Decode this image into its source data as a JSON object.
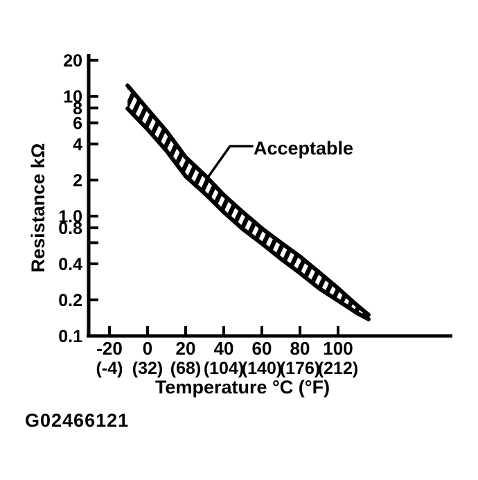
{
  "figure": {
    "id_label": "G02466121"
  },
  "colors": {
    "ink": "#000000",
    "background": "#ffffff"
  },
  "chart_data": {
    "type": "area",
    "subtype": "acceptable-band",
    "title": "",
    "description": "Sensor resistance versus temperature with hatched acceptable range band",
    "grid": false,
    "legend": "none",
    "x_axis": {
      "label": "Temperature °C (°F)",
      "range_c": [
        -31,
        160
      ],
      "ticks": [
        {
          "value": -20,
          "c": "-20",
          "f": "(-4)"
        },
        {
          "value": 0,
          "c": "0",
          "f": "(32)"
        },
        {
          "value": 20,
          "c": "20",
          "f": "(68)"
        },
        {
          "value": 40,
          "c": "40",
          "f": "(104)"
        },
        {
          "value": 60,
          "c": "60",
          "f": "(140)"
        },
        {
          "value": 80,
          "c": "80",
          "f": "(176)"
        },
        {
          "value": 100,
          "c": "100",
          "f": "(212)"
        }
      ]
    },
    "y_axis": {
      "label": "Resistance kΩ",
      "unit": "kΩ",
      "scale": "log",
      "range": [
        0.1,
        22
      ],
      "ticks": [
        {
          "label": "20",
          "value": 20
        },
        {
          "label": "10",
          "value": 10
        },
        {
          "label": "8",
          "value": 8
        },
        {
          "label": "6",
          "value": 6
        },
        {
          "label": "4",
          "value": 4
        },
        {
          "label": "2",
          "value": 2
        },
        {
          "label": "1.0",
          "value": 1.0
        },
        {
          "label": "0.8",
          "value": 0.8
        },
        {
          "label": "",
          "value": 0.6
        },
        {
          "label": "0.4",
          "value": 0.4
        },
        {
          "label": "0.2",
          "value": 0.2
        },
        {
          "label": "0.1",
          "value": 0.1
        }
      ]
    },
    "series": [
      {
        "name": "Acceptable",
        "type": "band",
        "style": {
          "hatched": true,
          "color": "#000000"
        },
        "points": [
          {
            "temp_c": -10.5,
            "upper_kohm": 12.3,
            "lower_kohm": 7.9
          },
          {
            "temp_c": 0,
            "upper_kohm": 7.8,
            "lower_kohm": 5.3
          },
          {
            "temp_c": 10,
            "upper_kohm": 5.1,
            "lower_kohm": 3.5
          },
          {
            "temp_c": 20,
            "upper_kohm": 3.1,
            "lower_kohm": 2.15
          },
          {
            "temp_c": 30,
            "upper_kohm": 2.2,
            "lower_kohm": 1.55
          },
          {
            "temp_c": 40,
            "upper_kohm": 1.5,
            "lower_kohm": 1.08
          },
          {
            "temp_c": 50,
            "upper_kohm": 1.08,
            "lower_kohm": 0.78
          },
          {
            "temp_c": 60,
            "upper_kohm": 0.79,
            "lower_kohm": 0.59
          },
          {
            "temp_c": 70,
            "upper_kohm": 0.6,
            "lower_kohm": 0.44
          },
          {
            "temp_c": 80,
            "upper_kohm": 0.46,
            "lower_kohm": 0.335
          },
          {
            "temp_c": 90,
            "upper_kohm": 0.34,
            "lower_kohm": 0.25
          },
          {
            "temp_c": 100,
            "upper_kohm": 0.25,
            "lower_kohm": 0.197
          },
          {
            "temp_c": 110,
            "upper_kohm": 0.18,
            "lower_kohm": 0.155
          },
          {
            "temp_c": 116,
            "upper_kohm": 0.15,
            "lower_kohm": 0.138
          }
        ]
      }
    ],
    "annotation": {
      "text": "Acceptable"
    }
  }
}
